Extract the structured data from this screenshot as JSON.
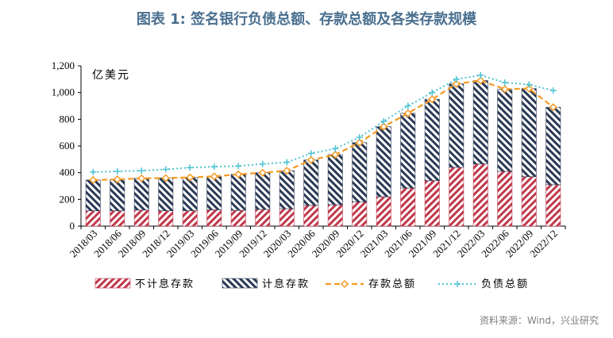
{
  "title": "图表 1:    签名银行负债总额、存款总额及各类存款规模",
  "source": "资料来源：Wind，兴业研究",
  "colors": {
    "title": "#4a6f8f",
    "non_interest": "#c0394b",
    "interest": "#2b3a55",
    "deposits_line": "#f59a23",
    "liabilities_line": "#4fc3d3"
  },
  "chart_data": {
    "type": "bar",
    "stacked": true,
    "unit_label": "亿美元",
    "categories": [
      "2018/03",
      "2018/06",
      "2018/09",
      "2018/12",
      "2019/03",
      "2019/06",
      "2019/09",
      "2019/12",
      "2020/03",
      "2020/06",
      "2020/09",
      "2020/12",
      "2021/03",
      "2021/06",
      "2021/09",
      "2021/12",
      "2022/03",
      "2022/06",
      "2022/09",
      "2022/12"
    ],
    "ylim": [
      0,
      1200
    ],
    "yticks": [
      "0",
      "200",
      "400",
      "600",
      "800",
      "1,000",
      "1,200"
    ],
    "ytick_values": [
      0,
      200,
      400,
      600,
      800,
      1000,
      1200
    ],
    "grid": false,
    "legend_position": "bottom",
    "series": [
      {
        "name": "不计息存款",
        "kind": "bar",
        "values": [
          115,
          115,
          120,
          115,
          115,
          122,
          118,
          125,
          130,
          155,
          160,
          180,
          220,
          285,
          340,
          440,
          465,
          410,
          370,
          310
        ]
      },
      {
        "name": "计息存款",
        "kind": "bar",
        "values": [
          230,
          235,
          238,
          245,
          250,
          250,
          270,
          275,
          285,
          340,
          375,
          445,
          525,
          560,
          610,
          625,
          625,
          615,
          660,
          580
        ]
      },
      {
        "name": "存款总额",
        "kind": "line",
        "values": [
          345,
          350,
          358,
          360,
          365,
          372,
          388,
          400,
          415,
          495,
          535,
          625,
          745,
          845,
          950,
          1065,
          1090,
          1025,
          1030,
          890
        ]
      },
      {
        "name": "负债总额",
        "kind": "line",
        "values": [
          405,
          410,
          415,
          425,
          438,
          445,
          450,
          465,
          478,
          545,
          580,
          665,
          785,
          900,
          1000,
          1100,
          1130,
          1075,
          1060,
          1015
        ]
      }
    ]
  }
}
